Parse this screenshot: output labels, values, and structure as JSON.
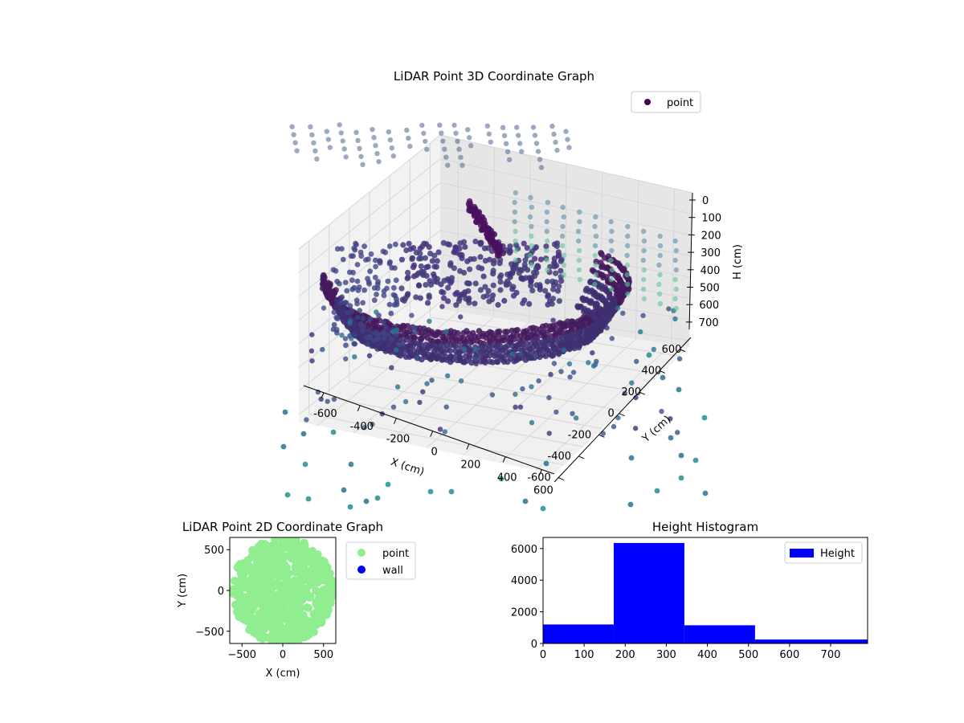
{
  "figure": {
    "charts": {
      "scatter3d": {
        "title": "LiDAR Point 3D Coordinate Graph",
        "xlabel": "X (cm)",
        "ylabel": "Y (cm)",
        "zlabel": "H (cm)",
        "legend": "point"
      },
      "scatter2d": {
        "title": "LiDAR Point 2D Coordinate Graph",
        "xlabel": "X (cm)",
        "ylabel": "Y (cm)",
        "legend_point": "point",
        "legend_wall": "wall"
      },
      "histogram": {
        "title": "Height Histogram",
        "legend": "Height"
      }
    }
  },
  "chart_data": [
    {
      "type": "scatter",
      "title": "LiDAR Point 3D Coordinate Graph",
      "xlabel": "X (cm)",
      "ylabel": "Y (cm)",
      "zlabel": "H (cm)",
      "x_ticks": [
        -600,
        -400,
        -200,
        0,
        200,
        400,
        600
      ],
      "y_ticks": [
        -600,
        -400,
        -200,
        0,
        200,
        400,
        600
      ],
      "z_ticks": [
        0,
        100,
        200,
        300,
        400,
        500,
        600,
        700
      ],
      "z_inverted": true,
      "legend": "top-right",
      "series": [
        {
          "name": "point",
          "color": "#440154",
          "colormap": "viridis"
        }
      ]
    },
    {
      "type": "scatter",
      "title": "LiDAR Point 2D Coordinate Graph",
      "xlabel": "X (cm)",
      "ylabel": "Y (cm)",
      "xlim": [
        -650,
        650
      ],
      "ylim": [
        -650,
        650
      ],
      "x_ticks": [
        -500,
        0,
        500
      ],
      "y_ticks": [
        -500,
        0,
        500
      ],
      "legend": "outside-right",
      "series": [
        {
          "name": "point",
          "color": "#90ee90"
        },
        {
          "name": "wall",
          "color": "#0000ff"
        }
      ]
    },
    {
      "type": "bar",
      "title": "Height Histogram",
      "xlim": [
        0,
        790
      ],
      "ylim": [
        0,
        6700
      ],
      "x_ticks": [
        0,
        100,
        200,
        300,
        400,
        500,
        600,
        700
      ],
      "y_ticks": [
        0,
        2000,
        4000,
        6000
      ],
      "bins": [
        {
          "start": 0,
          "end": 172,
          "count": 1200
        },
        {
          "start": 172,
          "end": 344,
          "count": 6350
        },
        {
          "start": 344,
          "end": 516,
          "count": 1150
        },
        {
          "start": 516,
          "end": 790,
          "count": 250
        }
      ],
      "legend": "top-right",
      "series": [
        {
          "name": "Height",
          "color": "#0000ff"
        }
      ]
    }
  ]
}
